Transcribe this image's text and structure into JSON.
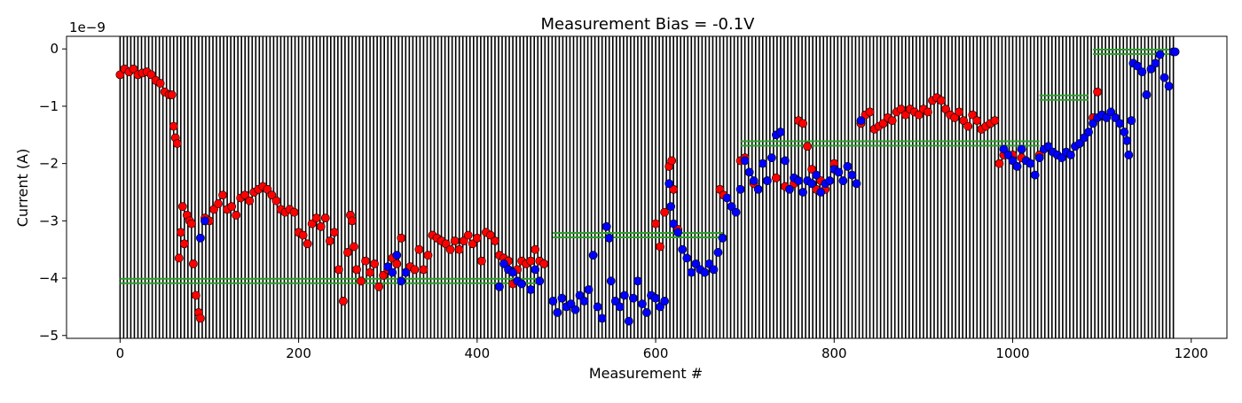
{
  "chart_data": {
    "type": "scatter",
    "title": "Measurement Bias = -0.1V",
    "xlabel": "Measurement #",
    "ylabel": "Current (A)",
    "y_offset_label": "1e−9",
    "y_scale_note": "y values in units of 1e-9 A",
    "xlim": [
      -60,
      1240
    ],
    "ylim": [
      -5.05,
      0.22
    ],
    "xticks": [
      0,
      200,
      400,
      600,
      800,
      1000,
      1200
    ],
    "yticks": [
      -5,
      -4,
      -3,
      -2,
      -1,
      0
    ],
    "xtick_labels": [
      "0",
      "200",
      "400",
      "600",
      "800",
      "1000",
      "1200"
    ],
    "ytick_labels": [
      "−5",
      "−4",
      "−3",
      "−2",
      "−1",
      "0"
    ],
    "grid": false,
    "vertical_lines": {
      "color": "#000000",
      "x_start": 0,
      "x_end": 1182,
      "spacing": 4
    },
    "green_segments": [
      {
        "x0": 0,
        "x1": 470,
        "y": -4.05
      },
      {
        "x0": 485,
        "x1": 675,
        "y": -3.25
      },
      {
        "x0": 695,
        "x1": 1030,
        "y": -1.65
      },
      {
        "x0": 1030,
        "x1": 1085,
        "y": -0.85
      },
      {
        "x0": 1090,
        "x1": 1175,
        "y": -0.05
      }
    ],
    "green_color": "#2ca02c",
    "series": [
      {
        "color": "#ff0000",
        "points": [
          [
            0,
            -0.45
          ],
          [
            5,
            -0.35
          ],
          [
            10,
            -0.4
          ],
          [
            15,
            -0.35
          ],
          [
            20,
            -0.45
          ],
          [
            25,
            -0.42
          ],
          [
            30,
            -0.4
          ],
          [
            35,
            -0.45
          ],
          [
            40,
            -0.55
          ],
          [
            45,
            -0.6
          ],
          [
            50,
            -0.75
          ],
          [
            55,
            -0.8
          ],
          [
            58,
            -0.8
          ],
          [
            60,
            -1.35
          ],
          [
            62,
            -1.55
          ],
          [
            64,
            -1.65
          ],
          [
            66,
            -3.65
          ],
          [
            68,
            -3.2
          ],
          [
            70,
            -2.75
          ],
          [
            72,
            -3.4
          ],
          [
            75,
            -2.9
          ],
          [
            78,
            -3.0
          ],
          [
            80,
            -3.05
          ],
          [
            82,
            -3.75
          ],
          [
            85,
            -4.3
          ],
          [
            88,
            -4.6
          ],
          [
            90,
            -4.7
          ],
          [
            95,
            -2.95
          ],
          [
            100,
            -3.0
          ],
          [
            105,
            -2.8
          ],
          [
            110,
            -2.7
          ],
          [
            115,
            -2.55
          ],
          [
            120,
            -2.8
          ],
          [
            125,
            -2.75
          ],
          [
            130,
            -2.9
          ],
          [
            135,
            -2.6
          ],
          [
            140,
            -2.55
          ],
          [
            145,
            -2.65
          ],
          [
            150,
            -2.5
          ],
          [
            155,
            -2.45
          ],
          [
            160,
            -2.4
          ],
          [
            165,
            -2.45
          ],
          [
            170,
            -2.55
          ],
          [
            175,
            -2.65
          ],
          [
            180,
            -2.8
          ],
          [
            185,
            -2.85
          ],
          [
            190,
            -2.8
          ],
          [
            195,
            -2.85
          ],
          [
            200,
            -3.2
          ],
          [
            205,
            -3.25
          ],
          [
            210,
            -3.4
          ],
          [
            215,
            -3.05
          ],
          [
            220,
            -2.95
          ],
          [
            225,
            -3.1
          ],
          [
            230,
            -2.95
          ],
          [
            235,
            -3.35
          ],
          [
            240,
            -3.2
          ],
          [
            245,
            -3.85
          ],
          [
            250,
            -4.4
          ],
          [
            255,
            -3.55
          ],
          [
            258,
            -2.9
          ],
          [
            260,
            -3.0
          ],
          [
            262,
            -3.45
          ],
          [
            265,
            -3.85
          ],
          [
            270,
            -4.05
          ],
          [
            275,
            -3.7
          ],
          [
            280,
            -3.9
          ],
          [
            285,
            -3.75
          ],
          [
            290,
            -4.15
          ],
          [
            295,
            -3.95
          ],
          [
            300,
            -3.85
          ],
          [
            305,
            -3.65
          ],
          [
            310,
            -3.75
          ],
          [
            315,
            -3.3
          ],
          [
            320,
            -3.9
          ],
          [
            325,
            -3.8
          ],
          [
            330,
            -3.85
          ],
          [
            335,
            -3.5
          ],
          [
            340,
            -3.85
          ],
          [
            345,
            -3.6
          ],
          [
            350,
            -3.25
          ],
          [
            355,
            -3.3
          ],
          [
            360,
            -3.35
          ],
          [
            365,
            -3.4
          ],
          [
            370,
            -3.5
          ],
          [
            375,
            -3.35
          ],
          [
            380,
            -3.5
          ],
          [
            385,
            -3.35
          ],
          [
            390,
            -3.25
          ],
          [
            395,
            -3.4
          ],
          [
            400,
            -3.3
          ],
          [
            405,
            -3.7
          ],
          [
            410,
            -3.2
          ],
          [
            415,
            -3.25
          ],
          [
            420,
            -3.35
          ],
          [
            425,
            -3.6
          ],
          [
            430,
            -3.65
          ],
          [
            435,
            -3.7
          ],
          [
            440,
            -4.1
          ],
          [
            445,
            -3.85
          ],
          [
            450,
            -3.7
          ],
          [
            455,
            -3.75
          ],
          [
            460,
            -3.7
          ],
          [
            465,
            -3.5
          ],
          [
            470,
            -3.7
          ],
          [
            475,
            -3.75
          ],
          [
            600,
            -3.05
          ],
          [
            605,
            -3.45
          ],
          [
            610,
            -2.85
          ],
          [
            615,
            -2.05
          ],
          [
            618,
            -1.95
          ],
          [
            620,
            -2.45
          ],
          [
            625,
            -3.15
          ],
          [
            672,
            -2.45
          ],
          [
            676,
            -2.55
          ],
          [
            695,
            -1.95
          ],
          [
            700,
            -1.9
          ],
          [
            710,
            -2.35
          ],
          [
            725,
            -2.3
          ],
          [
            735,
            -2.25
          ],
          [
            745,
            -2.4
          ],
          [
            755,
            -2.35
          ],
          [
            760,
            -1.25
          ],
          [
            765,
            -1.3
          ],
          [
            770,
            -1.7
          ],
          [
            775,
            -2.1
          ],
          [
            780,
            -2.45
          ],
          [
            785,
            -2.3
          ],
          [
            790,
            -2.45
          ],
          [
            800,
            -2.0
          ],
          [
            830,
            -1.3
          ],
          [
            835,
            -1.15
          ],
          [
            840,
            -1.1
          ],
          [
            845,
            -1.4
          ],
          [
            850,
            -1.35
          ],
          [
            855,
            -1.3
          ],
          [
            860,
            -1.2
          ],
          [
            865,
            -1.25
          ],
          [
            870,
            -1.1
          ],
          [
            875,
            -1.05
          ],
          [
            880,
            -1.15
          ],
          [
            885,
            -1.05
          ],
          [
            890,
            -1.1
          ],
          [
            895,
            -1.15
          ],
          [
            900,
            -1.05
          ],
          [
            905,
            -1.1
          ],
          [
            910,
            -0.9
          ],
          [
            915,
            -0.85
          ],
          [
            920,
            -0.9
          ],
          [
            925,
            -1.05
          ],
          [
            930,
            -1.15
          ],
          [
            935,
            -1.2
          ],
          [
            940,
            -1.1
          ],
          [
            945,
            -1.25
          ],
          [
            950,
            -1.35
          ],
          [
            955,
            -1.15
          ],
          [
            960,
            -1.25
          ],
          [
            965,
            -1.4
          ],
          [
            970,
            -1.35
          ],
          [
            975,
            -1.3
          ],
          [
            980,
            -1.25
          ],
          [
            985,
            -2.0
          ],
          [
            990,
            -1.85
          ],
          [
            1000,
            -1.85
          ],
          [
            1010,
            -1.9
          ],
          [
            1030,
            -1.85
          ],
          [
            1090,
            -1.2
          ],
          [
            1095,
            -0.75
          ]
        ]
      },
      {
        "color": "#0000ff",
        "points": [
          [
            90,
            -3.3
          ],
          [
            95,
            -3.0
          ],
          [
            300,
            -3.8
          ],
          [
            305,
            -3.9
          ],
          [
            310,
            -3.6
          ],
          [
            315,
            -4.05
          ],
          [
            320,
            -3.9
          ],
          [
            425,
            -4.15
          ],
          [
            430,
            -3.75
          ],
          [
            435,
            -3.85
          ],
          [
            440,
            -3.9
          ],
          [
            445,
            -4.05
          ],
          [
            450,
            -4.1
          ],
          [
            460,
            -4.2
          ],
          [
            465,
            -3.85
          ],
          [
            470,
            -4.05
          ],
          [
            485,
            -4.4
          ],
          [
            490,
            -4.6
          ],
          [
            495,
            -4.35
          ],
          [
            500,
            -4.5
          ],
          [
            505,
            -4.45
          ],
          [
            510,
            -4.55
          ],
          [
            515,
            -4.3
          ],
          [
            520,
            -4.4
          ],
          [
            525,
            -4.2
          ],
          [
            530,
            -3.6
          ],
          [
            535,
            -4.5
          ],
          [
            540,
            -4.7
          ],
          [
            545,
            -3.1
          ],
          [
            548,
            -3.3
          ],
          [
            550,
            -4.05
          ],
          [
            555,
            -4.4
          ],
          [
            560,
            -4.5
          ],
          [
            565,
            -4.3
          ],
          [
            570,
            -4.75
          ],
          [
            575,
            -4.35
          ],
          [
            580,
            -4.05
          ],
          [
            585,
            -4.45
          ],
          [
            590,
            -4.6
          ],
          [
            595,
            -4.3
          ],
          [
            600,
            -4.35
          ],
          [
            605,
            -4.5
          ],
          [
            610,
            -4.4
          ],
          [
            615,
            -2.35
          ],
          [
            617,
            -2.75
          ],
          [
            620,
            -3.05
          ],
          [
            625,
            -3.2
          ],
          [
            630,
            -3.5
          ],
          [
            635,
            -3.65
          ],
          [
            640,
            -3.9
          ],
          [
            645,
            -3.75
          ],
          [
            650,
            -3.85
          ],
          [
            655,
            -3.9
          ],
          [
            660,
            -3.75
          ],
          [
            665,
            -3.85
          ],
          [
            670,
            -3.55
          ],
          [
            675,
            -3.3
          ],
          [
            680,
            -2.6
          ],
          [
            685,
            -2.75
          ],
          [
            690,
            -2.85
          ],
          [
            695,
            -2.45
          ],
          [
            700,
            -1.95
          ],
          [
            705,
            -2.15
          ],
          [
            710,
            -2.3
          ],
          [
            715,
            -2.45
          ],
          [
            720,
            -2.0
          ],
          [
            725,
            -2.3
          ],
          [
            730,
            -1.9
          ],
          [
            735,
            -1.5
          ],
          [
            740,
            -1.45
          ],
          [
            745,
            -1.95
          ],
          [
            750,
            -2.45
          ],
          [
            755,
            -2.25
          ],
          [
            760,
            -2.3
          ],
          [
            765,
            -2.5
          ],
          [
            770,
            -2.3
          ],
          [
            775,
            -2.35
          ],
          [
            780,
            -2.2
          ],
          [
            785,
            -2.5
          ],
          [
            790,
            -2.35
          ],
          [
            795,
            -2.3
          ],
          [
            800,
            -2.1
          ],
          [
            805,
            -2.15
          ],
          [
            810,
            -2.3
          ],
          [
            815,
            -2.05
          ],
          [
            820,
            -2.2
          ],
          [
            825,
            -2.35
          ],
          [
            830,
            -1.25
          ],
          [
            990,
            -1.75
          ],
          [
            995,
            -1.85
          ],
          [
            1000,
            -1.95
          ],
          [
            1005,
            -2.05
          ],
          [
            1010,
            -1.75
          ],
          [
            1015,
            -1.95
          ],
          [
            1020,
            -2.0
          ],
          [
            1025,
            -2.2
          ],
          [
            1030,
            -1.9
          ],
          [
            1035,
            -1.75
          ],
          [
            1040,
            -1.7
          ],
          [
            1045,
            -1.8
          ],
          [
            1050,
            -1.85
          ],
          [
            1055,
            -1.9
          ],
          [
            1060,
            -1.8
          ],
          [
            1065,
            -1.85
          ],
          [
            1070,
            -1.7
          ],
          [
            1075,
            -1.65
          ],
          [
            1080,
            -1.55
          ],
          [
            1085,
            -1.45
          ],
          [
            1090,
            -1.3
          ],
          [
            1095,
            -1.2
          ],
          [
            1100,
            -1.15
          ],
          [
            1105,
            -1.2
          ],
          [
            1110,
            -1.1
          ],
          [
            1115,
            -1.2
          ],
          [
            1120,
            -1.3
          ],
          [
            1125,
            -1.45
          ],
          [
            1128,
            -1.6
          ],
          [
            1130,
            -1.85
          ],
          [
            1133,
            -1.25
          ],
          [
            1135,
            -0.25
          ],
          [
            1140,
            -0.3
          ],
          [
            1145,
            -0.4
          ],
          [
            1150,
            -0.8
          ],
          [
            1155,
            -0.35
          ],
          [
            1160,
            -0.25
          ],
          [
            1165,
            -0.1
          ],
          [
            1170,
            -0.5
          ],
          [
            1175,
            -0.65
          ],
          [
            1180,
            -0.05
          ],
          [
            1182,
            -0.05
          ]
        ]
      }
    ]
  }
}
